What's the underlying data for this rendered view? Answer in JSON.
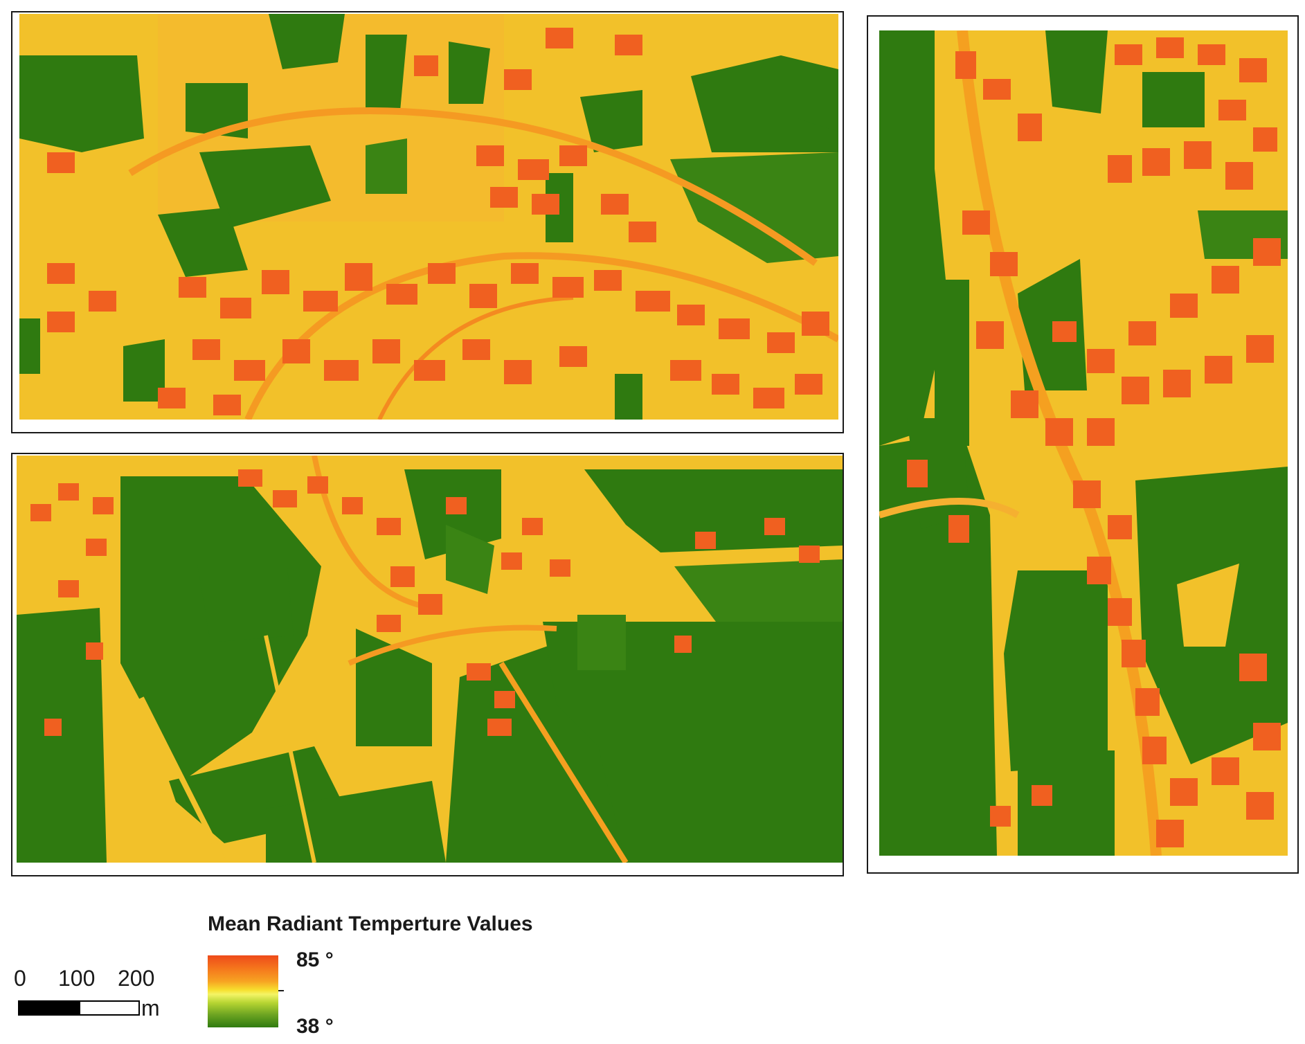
{
  "maps": [
    {
      "id": "top-left"
    },
    {
      "id": "bottom-left"
    },
    {
      "id": "right"
    }
  ],
  "colors": {
    "vegetation": "#2f7a10",
    "open_ground": "#f2c12a",
    "buildings": "#f06020",
    "roads": "#f5a020"
  },
  "scale_bar": {
    "labels": [
      "0",
      "100",
      "200"
    ],
    "unit": "m"
  },
  "legend": {
    "title": "Mean Radiant Temperture Values",
    "max_label": "85 °",
    "min_label": "38 °",
    "ramp_colors": [
      "#ee4a1a",
      "#f7a322",
      "#f7df2e",
      "#f4f466",
      "#6ea522",
      "#2f7a10"
    ]
  }
}
